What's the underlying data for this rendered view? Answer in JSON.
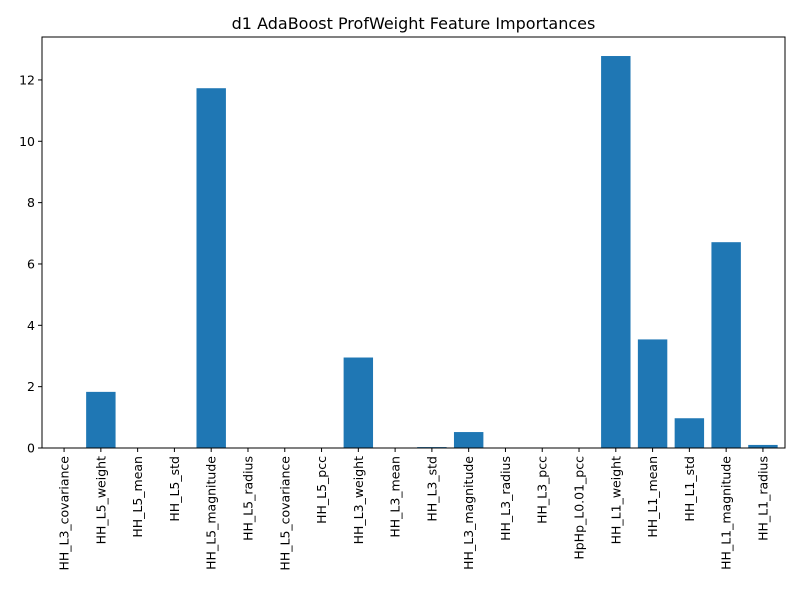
{
  "chart_data": {
    "type": "bar",
    "title": "d1 AdaBoost ProfWeight Feature Importances",
    "xlabel": "",
    "ylabel": "",
    "ylim": [
      0,
      13.4
    ],
    "yticks": [
      0,
      2,
      4,
      6,
      8,
      10,
      12
    ],
    "grid": false,
    "bar_color": "#1f77b4",
    "categories": [
      "HH_L3_covariance",
      "HH_L5_weight",
      "HH_L5_mean",
      "HH_L5_std",
      "HH_L5_magnitude",
      "HH_L5_radius",
      "HH_L5_covariance",
      "HH_L5_pcc",
      "HH_L3_weight",
      "HH_L3_mean",
      "HH_L3_std",
      "HH_L3_magnitude",
      "HH_L3_radius",
      "HH_L3_pcc",
      "HpHp_L0.01_pcc",
      "HH_L1_weight",
      "HH_L1_mean",
      "HH_L1_std",
      "HH_L1_magnitude",
      "HH_L1_radius"
    ],
    "values": [
      0,
      1.83,
      0,
      0,
      11.73,
      0,
      0,
      0,
      2.95,
      0,
      0.03,
      0.52,
      0,
      0,
      0,
      12.78,
      3.54,
      0.97,
      6.71,
      0.1
    ]
  }
}
